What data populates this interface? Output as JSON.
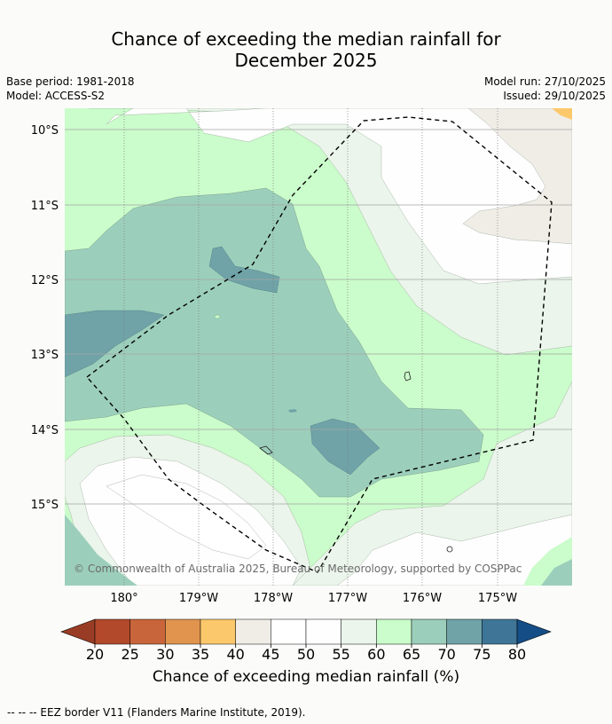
{
  "title": {
    "line1": "Chance of exceeding the median rainfall for",
    "line2": "December 2025"
  },
  "meta": {
    "base_period": "Base period: 1981-2018",
    "model": "Model: ACCESS-S2",
    "model_run": "Model run: 27/10/2025",
    "issued": "Issued: 29/10/2025"
  },
  "axes": {
    "lat_labels": [
      "10°S",
      "11°S",
      "12°S",
      "13°S",
      "14°S",
      "15°S"
    ],
    "lon_labels": [
      "180°",
      "179°W",
      "178°W",
      "177°W",
      "176°W",
      "175°W"
    ]
  },
  "attribution": "© Commonwealth of Australia 2025, Bureau of Meteorology, supported by COSPPac",
  "colorbar": {
    "ticks": [
      "20",
      "25",
      "30",
      "35",
      "40",
      "45",
      "50",
      "55",
      "60",
      "65",
      "70",
      "75",
      "80"
    ],
    "colors": [
      "#b2492a",
      "#c9653a",
      "#e0944e",
      "#fbc86b",
      "#f0ede7",
      "#ffffff",
      "#fdfefd",
      "#ebf5eb",
      "#cbfccb",
      "#9ccfbb",
      "#6fa3a8",
      "#3f7596"
    ],
    "under_color": "#993c25",
    "over_color": "#154d86",
    "label": "Chance of exceeding median rainfall (%)"
  },
  "legend": {
    "eez": "--  --  -- EEZ border V11 (Flanders Marine Institute, 2019)."
  }
}
